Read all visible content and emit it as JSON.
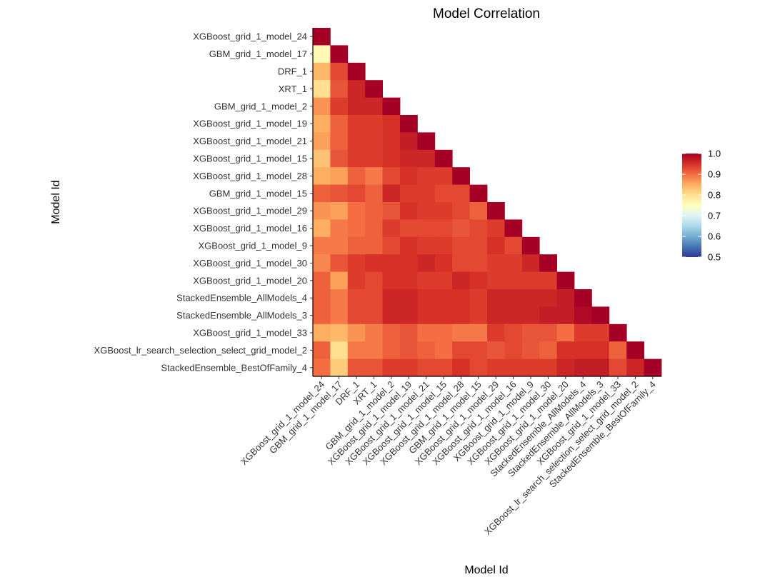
{
  "chart_data": {
    "type": "heatmap",
    "title": "Model Correlation",
    "xlabel": "Model Id",
    "ylabel": "Model Id",
    "models": [
      "XGBoost_grid_1_model_24",
      "GBM_grid_1_model_17",
      "DRF_1",
      "XRT_1",
      "GBM_grid_1_model_2",
      "XGBoost_grid_1_model_19",
      "XGBoost_grid_1_model_21",
      "XGBoost_grid_1_model_15",
      "XGBoost_grid_1_model_28",
      "GBM_grid_1_model_15",
      "XGBoost_grid_1_model_29",
      "XGBoost_grid_1_model_16",
      "XGBoost_grid_1_model_9",
      "XGBoost_grid_1_model_30",
      "XGBoost_grid_1_model_20",
      "StackedEnsemble_AllModels_4",
      "StackedEnsemble_AllModels_3",
      "XGBoost_grid_1_model_33",
      "XGBoost_lr_search_selection_select_grid_model_2",
      "StackedEnsemble_BestOfFamily_4"
    ],
    "values": [
      [
        1.0
      ],
      [
        0.76,
        1.0
      ],
      [
        0.84,
        0.93,
        1.0
      ],
      [
        0.8,
        0.92,
        0.96,
        1.0
      ],
      [
        0.87,
        0.94,
        0.96,
        0.96,
        1.0
      ],
      [
        0.85,
        0.91,
        0.94,
        0.94,
        0.95,
        1.0
      ],
      [
        0.86,
        0.91,
        0.94,
        0.94,
        0.95,
        0.97,
        1.0
      ],
      [
        0.83,
        0.92,
        0.94,
        0.94,
        0.95,
        0.96,
        0.96,
        1.0
      ],
      [
        0.85,
        0.86,
        0.91,
        0.89,
        0.93,
        0.95,
        0.94,
        0.94,
        1.0
      ],
      [
        0.91,
        0.92,
        0.93,
        0.91,
        0.96,
        0.94,
        0.94,
        0.93,
        0.93,
        1.0
      ],
      [
        0.87,
        0.86,
        0.9,
        0.91,
        0.92,
        0.95,
        0.94,
        0.94,
        0.93,
        0.91,
        1.0
      ],
      [
        0.85,
        0.89,
        0.9,
        0.91,
        0.94,
        0.93,
        0.93,
        0.93,
        0.92,
        0.93,
        0.94,
        1.0
      ],
      [
        0.89,
        0.89,
        0.91,
        0.91,
        0.93,
        0.95,
        0.94,
        0.94,
        0.93,
        0.93,
        0.95,
        0.93,
        1.0
      ],
      [
        0.88,
        0.92,
        0.94,
        0.95,
        0.95,
        0.95,
        0.96,
        0.95,
        0.93,
        0.93,
        0.94,
        0.94,
        0.96,
        1.0
      ],
      [
        0.91,
        0.86,
        0.94,
        0.93,
        0.95,
        0.95,
        0.94,
        0.94,
        0.96,
        0.95,
        0.94,
        0.94,
        0.94,
        0.94,
        1.0
      ],
      [
        0.91,
        0.89,
        0.93,
        0.93,
        0.96,
        0.96,
        0.95,
        0.95,
        0.95,
        0.94,
        0.96,
        0.96,
        0.96,
        0.96,
        0.97,
        1.0
      ],
      [
        0.91,
        0.89,
        0.93,
        0.93,
        0.96,
        0.96,
        0.95,
        0.95,
        0.95,
        0.94,
        0.96,
        0.96,
        0.96,
        0.97,
        0.97,
        0.99,
        1.0
      ],
      [
        0.85,
        0.84,
        0.87,
        0.89,
        0.91,
        0.92,
        0.9,
        0.9,
        0.89,
        0.89,
        0.94,
        0.93,
        0.92,
        0.92,
        0.9,
        0.94,
        0.94,
        1.0
      ],
      [
        0.91,
        0.8,
        0.89,
        0.89,
        0.91,
        0.92,
        0.91,
        0.9,
        0.93,
        0.93,
        0.92,
        0.93,
        0.92,
        0.91,
        0.95,
        0.95,
        0.95,
        0.91,
        1.0
      ],
      [
        0.9,
        0.82,
        0.92,
        0.92,
        0.94,
        0.94,
        0.93,
        0.93,
        0.95,
        0.93,
        0.94,
        0.94,
        0.94,
        0.94,
        0.96,
        0.97,
        0.97,
        0.93,
        0.96,
        1.0
      ]
    ],
    "color_scale": {
      "min": 0.5,
      "max": 1.0,
      "ticks": [
        "0.5",
        "0.6",
        "0.7",
        "0.8",
        "0.9",
        "1.0"
      ],
      "palette": [
        "#313695",
        "#4575b4",
        "#74add1",
        "#abd9e9",
        "#e0f3f8",
        "#ffffbf",
        "#fee090",
        "#fdae61",
        "#f46d43",
        "#d73027",
        "#a50026"
      ]
    },
    "legend_position": "right"
  }
}
